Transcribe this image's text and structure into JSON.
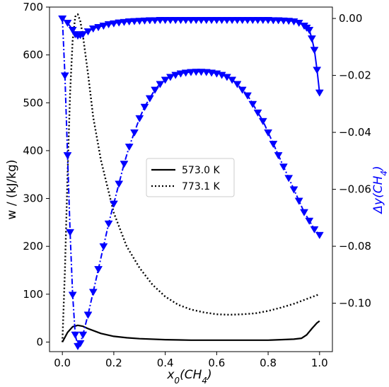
{
  "chart_data": {
    "type": "line",
    "xlabel_main": "x",
    "xlabel_sub": "0",
    "xlabel_paren": "(CH",
    "xlabel_sub2": "4",
    "xlabel_close": ")",
    "ylabel_left": "w / (kJ/kg)",
    "ylabel_right_main": "Δy(CH",
    "ylabel_right_sub": "4",
    "ylabel_right_close": ")",
    "xlim": [
      -0.05,
      1.05
    ],
    "ylim_left": [
      -20,
      700
    ],
    "ylim_right": [
      -0.117,
      0.004
    ],
    "x_ticks": [
      "0.0",
      "0.2",
      "0.4",
      "0.6",
      "0.8",
      "1.0"
    ],
    "y_left_ticks": [
      "0",
      "100",
      "200",
      "300",
      "400",
      "500",
      "600",
      "700"
    ],
    "y_right_ticks": [
      "0.00",
      "−0.02",
      "−0.04",
      "−0.06",
      "−0.08",
      "−0.10"
    ],
    "legend": {
      "position": "center",
      "entries": [
        "573.0 K",
        "773.1 K"
      ]
    },
    "colors": {
      "w_series": "#000000",
      "dy_series": "#0000ff"
    },
    "series": [
      {
        "name": "573.0 K",
        "axis": "left",
        "style": "solid",
        "x": [
          0.0,
          0.02,
          0.04,
          0.06,
          0.08,
          0.1,
          0.15,
          0.2,
          0.25,
          0.3,
          0.4,
          0.5,
          0.6,
          0.7,
          0.8,
          0.85,
          0.9,
          0.93,
          0.95,
          0.97,
          0.99,
          1.0
        ],
        "y": [
          0,
          20,
          32,
          35,
          33,
          28,
          18,
          12,
          9,
          7,
          5,
          4,
          4,
          4,
          4,
          5,
          6,
          8,
          15,
          28,
          40,
          44
        ]
      },
      {
        "name": "773.1 K",
        "axis": "left",
        "style": "dotted",
        "x": [
          0.0,
          0.01,
          0.02,
          0.03,
          0.04,
          0.05,
          0.06,
          0.07,
          0.08,
          0.1,
          0.12,
          0.15,
          0.2,
          0.25,
          0.3,
          0.35,
          0.4,
          0.45,
          0.5,
          0.55,
          0.6,
          0.65,
          0.7,
          0.75,
          0.8,
          0.85,
          0.9,
          0.95,
          1.0
        ],
        "y": [
          0,
          150,
          350,
          520,
          630,
          680,
          685,
          670,
          640,
          560,
          470,
          380,
          270,
          200,
          155,
          120,
          95,
          78,
          68,
          62,
          58,
          57,
          58,
          60,
          65,
          72,
          80,
          90,
          100
        ]
      },
      {
        "axis": "right",
        "style": "solid-triangle",
        "x": [
          0.0,
          0.02,
          0.04,
          0.05,
          0.06,
          0.07,
          0.08,
          0.1,
          0.12,
          0.14,
          0.16,
          0.18,
          0.2,
          0.22,
          0.24,
          0.26,
          0.28,
          0.3,
          0.32,
          0.34,
          0.36,
          0.38,
          0.4,
          0.42,
          0.44,
          0.46,
          0.48,
          0.5,
          0.52,
          0.54,
          0.56,
          0.58,
          0.6,
          0.62,
          0.64,
          0.66,
          0.68,
          0.7,
          0.72,
          0.74,
          0.76,
          0.78,
          0.8,
          0.82,
          0.84,
          0.86,
          0.88,
          0.9,
          0.92,
          0.94,
          0.95,
          0.96,
          0.97,
          0.98,
          0.99,
          1.0
        ],
        "y": [
          0.0,
          -0.0015,
          -0.004,
          -0.0055,
          -0.006,
          -0.0058,
          -0.0055,
          -0.0045,
          -0.0035,
          -0.003,
          -0.0025,
          -0.002,
          -0.0017,
          -0.0014,
          -0.0012,
          -0.001,
          -0.0009,
          -0.0008,
          -0.0007,
          -0.0006,
          -0.0006,
          -0.0005,
          -0.0005,
          -0.0005,
          -0.0005,
          -0.0005,
          -0.0005,
          -0.0005,
          -0.0005,
          -0.0005,
          -0.0005,
          -0.0005,
          -0.0005,
          -0.0005,
          -0.0005,
          -0.0005,
          -0.0005,
          -0.0005,
          -0.0005,
          -0.0005,
          -0.0005,
          -0.0005,
          -0.0005,
          -0.0006,
          -0.0006,
          -0.0007,
          -0.0008,
          -0.001,
          -0.0015,
          -0.0025,
          -0.0032,
          -0.004,
          -0.007,
          -0.011,
          -0.018,
          -0.026
        ]
      },
      {
        "axis": "right",
        "style": "dashdot-triangle",
        "x": [
          0.0,
          0.01,
          0.02,
          0.03,
          0.04,
          0.05,
          0.06,
          0.07,
          0.08,
          0.1,
          0.12,
          0.14,
          0.16,
          0.18,
          0.2,
          0.22,
          0.24,
          0.26,
          0.28,
          0.3,
          0.32,
          0.34,
          0.36,
          0.38,
          0.4,
          0.42,
          0.44,
          0.46,
          0.48,
          0.5,
          0.52,
          0.54,
          0.56,
          0.58,
          0.6,
          0.62,
          0.64,
          0.66,
          0.68,
          0.7,
          0.72,
          0.74,
          0.76,
          0.78,
          0.8,
          0.82,
          0.84,
          0.86,
          0.88,
          0.9,
          0.92,
          0.94,
          0.96,
          0.98,
          1.0
        ],
        "y": [
          0.0,
          -0.02,
          -0.048,
          -0.075,
          -0.097,
          -0.111,
          -0.115,
          -0.114,
          -0.111,
          -0.104,
          -0.096,
          -0.088,
          -0.08,
          -0.072,
          -0.065,
          -0.058,
          -0.051,
          -0.045,
          -0.04,
          -0.035,
          -0.031,
          -0.028,
          -0.025,
          -0.023,
          -0.0215,
          -0.0205,
          -0.0198,
          -0.0193,
          -0.019,
          -0.0188,
          -0.0187,
          -0.0187,
          -0.0188,
          -0.019,
          -0.0193,
          -0.0198,
          -0.0205,
          -0.0215,
          -0.023,
          -0.025,
          -0.027,
          -0.03,
          -0.033,
          -0.036,
          -0.04,
          -0.044,
          -0.048,
          -0.052,
          -0.056,
          -0.06,
          -0.064,
          -0.068,
          -0.071,
          -0.074,
          -0.076
        ]
      }
    ]
  }
}
